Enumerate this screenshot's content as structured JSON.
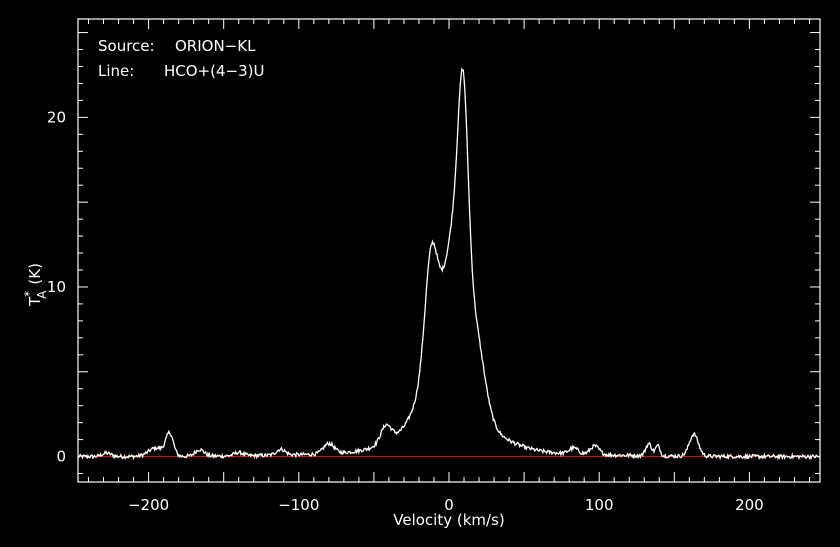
{
  "chart_data": {
    "type": "line",
    "xlabel": "Velocity (km/s)",
    "ylabel": {
      "base": "T",
      "superscript": "*",
      "subscript": "A",
      "unit": "(K)"
    },
    "xlim": [
      -247,
      247
    ],
    "ylim": [
      -1.5,
      25.8
    ],
    "xticks": [
      -200,
      -100,
      0,
      100,
      200
    ],
    "xtick_labels": [
      "−200",
      "−100",
      "0",
      "100",
      "200"
    ],
    "yticks": [
      0,
      10,
      20
    ],
    "ytick_labels": [
      "0",
      "10",
      "20"
    ],
    "grid": false,
    "baseline": {
      "y": 0,
      "color": "#cc1111"
    },
    "info": {
      "source_key": "Source:",
      "source_value": "ORION−KL",
      "line_key": "Line:",
      "line_value": "HCO+(4−3)U"
    },
    "series": [
      {
        "color": "#ffffff",
        "features": [
          {
            "v": -228,
            "h": 0.2,
            "w": 3
          },
          {
            "v": -195,
            "h": 0.5,
            "w": 5
          },
          {
            "v": -186,
            "h": 1.3,
            "w": 2.5
          },
          {
            "v": -166,
            "h": 0.4,
            "w": 3
          },
          {
            "v": -140,
            "h": 0.2,
            "w": 3
          },
          {
            "v": -112,
            "h": 0.35,
            "w": 3
          },
          {
            "v": -80,
            "h": 0.6,
            "w": 3.5
          },
          {
            "v": -42,
            "h": 1.0,
            "w": 3.5
          },
          {
            "v": -12,
            "h": 5.5,
            "w": 4
          },
          {
            "v": 9.5,
            "h": 10.0,
            "w": 3.2
          },
          {
            "v": 6,
            "h": 6.5,
            "w": 6
          },
          {
            "v": -3,
            "h": 6.0,
            "w": 11
          },
          {
            "v": 18,
            "h": 4.0,
            "w": 6
          },
          {
            "v": 0,
            "h": 2.5,
            "w": 25
          },
          {
            "v": 0,
            "h": 0.3,
            "w": 70
          },
          {
            "v": 83,
            "h": 0.35,
            "w": 3
          },
          {
            "v": 97,
            "h": 0.5,
            "w": 3
          },
          {
            "v": 133,
            "h": 0.7,
            "w": 2
          },
          {
            "v": 139,
            "h": 0.6,
            "w": 1.5
          },
          {
            "v": 163,
            "h": 1.3,
            "w": 3
          }
        ]
      }
    ]
  }
}
